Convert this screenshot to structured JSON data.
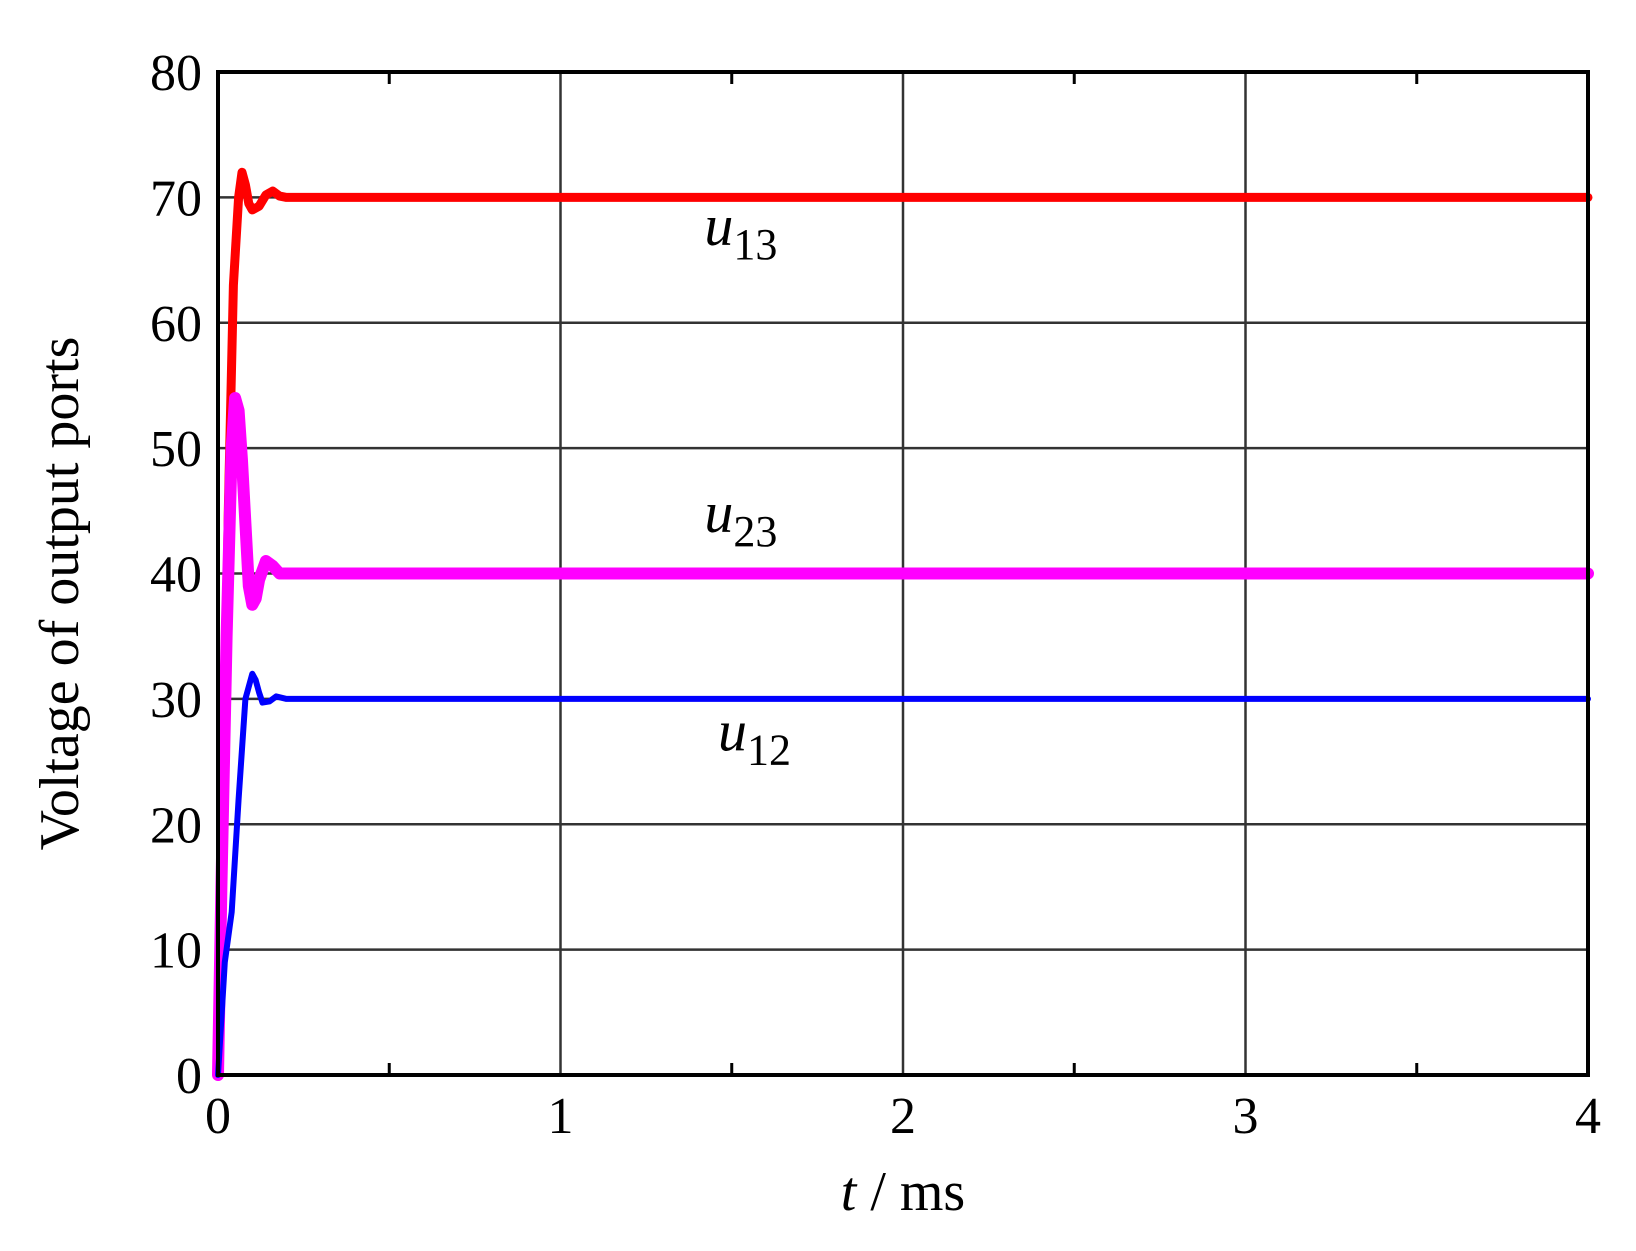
{
  "chart_data": {
    "type": "line",
    "title": "",
    "xlabel_var": "t",
    "xlabel_unit": " / ms",
    "ylabel": "Voltage of output ports",
    "xlim": [
      0,
      4
    ],
    "ylim": [
      0,
      80
    ],
    "xticks": [
      "0",
      "1",
      "2",
      "3",
      "4"
    ],
    "yticks": [
      "0",
      "10",
      "20",
      "30",
      "40",
      "50",
      "60",
      "70",
      "80"
    ],
    "grid": true,
    "series": [
      {
        "name": "u13",
        "label_base": "u",
        "label_sub": "13",
        "color": "#ff0000",
        "x": [
          0,
          0.015,
          0.03,
          0.045,
          0.06,
          0.07,
          0.08,
          0.09,
          0.1,
          0.12,
          0.14,
          0.16,
          0.18,
          0.2,
          0.25,
          4
        ],
        "y": [
          0,
          20,
          45,
          63,
          70,
          72,
          71,
          69.5,
          69,
          69.3,
          70.2,
          70.5,
          70.1,
          70,
          70,
          70
        ]
      },
      {
        "name": "u23",
        "label_base": "u",
        "label_sub": "23",
        "color": "#ff00ff",
        "x": [
          0,
          0.01,
          0.025,
          0.04,
          0.05,
          0.06,
          0.07,
          0.08,
          0.09,
          0.1,
          0.11,
          0.12,
          0.14,
          0.16,
          0.18,
          0.2,
          0.25,
          4
        ],
        "y": [
          0,
          15,
          35,
          50,
          54,
          53,
          49,
          44,
          39,
          37.5,
          38,
          39.5,
          41,
          40.6,
          40,
          40,
          40,
          40
        ]
      },
      {
        "name": "u12",
        "label_base": "u",
        "label_sub": "12",
        "color": "#0000ff",
        "x": [
          0,
          0.02,
          0.04,
          0.06,
          0.08,
          0.1,
          0.11,
          0.12,
          0.13,
          0.15,
          0.17,
          0.2,
          0.25,
          4
        ],
        "y": [
          0,
          9,
          13,
          22,
          30,
          32,
          31.5,
          30.5,
          29.7,
          29.8,
          30.2,
          30,
          30,
          30
        ]
      }
    ]
  }
}
